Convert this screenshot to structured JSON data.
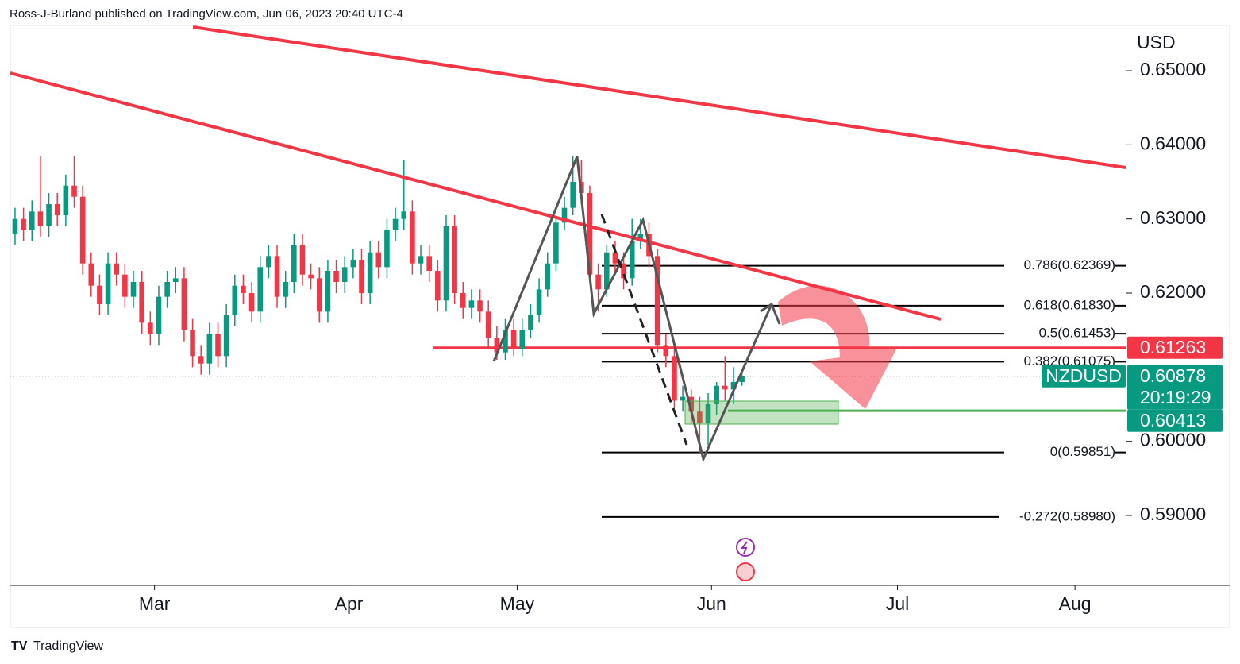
{
  "header": {
    "text": "Ross-J-Burland published on TradingView.com, Jun 06, 2023 20:40 UTC-4"
  },
  "footer": {
    "logo": "TradingView"
  },
  "chart_data": {
    "type": "candlestick",
    "y_axis_label": "USD",
    "up_color": "#089981",
    "down_color": "#f23645",
    "open": [
      0.628,
      0.63,
      0.6285,
      0.631,
      0.629,
      0.632,
      0.6305,
      0.6345,
      0.633,
      0.624,
      0.621,
      0.6185,
      0.624,
      0.6225,
      0.6195,
      0.6215,
      0.616,
      0.6145,
      0.6195,
      0.6215,
      0.622,
      0.615,
      0.6115,
      0.6105,
      0.6145,
      0.6115,
      0.617,
      0.621,
      0.62,
      0.6175,
      0.6235,
      0.625,
      0.6195,
      0.6215,
      0.6265,
      0.6225,
      0.622,
      0.6175,
      0.623,
      0.6215,
      0.6235,
      0.6245,
      0.62,
      0.6255,
      0.6235,
      0.6285,
      0.63,
      0.631,
      0.624,
      0.625,
      0.623,
      0.619,
      0.629,
      0.62,
      0.618,
      0.619,
      0.6175,
      0.614,
      0.612,
      0.615,
      0.6125,
      0.615,
      0.617,
      0.6205,
      0.624,
      0.6295,
      0.6315,
      0.635,
      0.6335,
      0.6225,
      0.6205,
      0.6255,
      0.624,
      0.622,
      0.627,
      0.628,
      0.625,
      0.613,
      0.6115,
      0.6055,
      0.606,
      0.604,
      0.6025,
      0.605,
      0.6075,
      0.607,
      0.608
    ],
    "high": [
      0.6315,
      0.6315,
      0.6325,
      0.6385,
      0.6335,
      0.6335,
      0.636,
      0.6385,
      0.6345,
      0.6255,
      0.6225,
      0.6255,
      0.6255,
      0.624,
      0.623,
      0.623,
      0.6175,
      0.621,
      0.623,
      0.6235,
      0.6235,
      0.6165,
      0.613,
      0.616,
      0.616,
      0.6185,
      0.6225,
      0.6225,
      0.6215,
      0.625,
      0.6265,
      0.6265,
      0.623,
      0.628,
      0.628,
      0.624,
      0.6235,
      0.6245,
      0.6245,
      0.625,
      0.626,
      0.626,
      0.627,
      0.627,
      0.63,
      0.6315,
      0.638,
      0.6325,
      0.6265,
      0.6265,
      0.6245,
      0.6305,
      0.6305,
      0.6215,
      0.6205,
      0.6205,
      0.619,
      0.6155,
      0.6165,
      0.6165,
      0.6165,
      0.6185,
      0.622,
      0.6255,
      0.6305,
      0.633,
      0.6385,
      0.638,
      0.6345,
      0.624,
      0.6265,
      0.627,
      0.6255,
      0.63,
      0.63,
      0.6295,
      0.626,
      0.6145,
      0.6125,
      0.6075,
      0.607,
      0.606,
      0.6065,
      0.608,
      0.6115,
      0.61,
      0.6095
    ],
    "low": [
      0.6265,
      0.627,
      0.627,
      0.6275,
      0.6275,
      0.629,
      0.629,
      0.6315,
      0.6225,
      0.6195,
      0.617,
      0.617,
      0.621,
      0.618,
      0.618,
      0.6145,
      0.613,
      0.613,
      0.618,
      0.62,
      0.6135,
      0.61,
      0.609,
      0.609,
      0.61,
      0.61,
      0.6155,
      0.6185,
      0.616,
      0.616,
      0.622,
      0.618,
      0.618,
      0.62,
      0.621,
      0.6205,
      0.616,
      0.616,
      0.62,
      0.62,
      0.622,
      0.6185,
      0.6185,
      0.622,
      0.622,
      0.627,
      0.6285,
      0.6225,
      0.6225,
      0.6215,
      0.6175,
      0.6175,
      0.6185,
      0.6165,
      0.6165,
      0.616,
      0.6125,
      0.611,
      0.611,
      0.6115,
      0.6115,
      0.614,
      0.616,
      0.6195,
      0.623,
      0.6285,
      0.6305,
      0.632,
      0.6215,
      0.6175,
      0.6195,
      0.6225,
      0.6205,
      0.621,
      0.626,
      0.6235,
      0.612,
      0.61,
      0.6045,
      0.604,
      0.6025,
      0.5985,
      0.5995,
      0.6035,
      0.6055,
      0.605,
      0.6075
    ],
    "close": [
      0.63,
      0.6285,
      0.631,
      0.629,
      0.632,
      0.6305,
      0.6345,
      0.633,
      0.624,
      0.621,
      0.6185,
      0.624,
      0.6225,
      0.6195,
      0.6215,
      0.616,
      0.6145,
      0.6195,
      0.6215,
      0.622,
      0.615,
      0.6115,
      0.6105,
      0.6145,
      0.6115,
      0.617,
      0.621,
      0.62,
      0.6175,
      0.6235,
      0.625,
      0.6195,
      0.6215,
      0.6265,
      0.6225,
      0.622,
      0.6175,
      0.623,
      0.6215,
      0.6235,
      0.6245,
      0.62,
      0.6255,
      0.6235,
      0.6285,
      0.63,
      0.631,
      0.624,
      0.625,
      0.623,
      0.619,
      0.629,
      0.62,
      0.618,
      0.619,
      0.6175,
      0.614,
      0.612,
      0.615,
      0.6125,
      0.615,
      0.617,
      0.6205,
      0.624,
      0.6295,
      0.6315,
      0.635,
      0.6335,
      0.6225,
      0.6205,
      0.6255,
      0.624,
      0.622,
      0.627,
      0.628,
      0.625,
      0.613,
      0.6115,
      0.6055,
      0.606,
      0.604,
      0.6025,
      0.605,
      0.6075,
      0.607,
      0.608,
      0.6088
    ],
    "xlim": [
      -0.56,
      131.4
    ],
    "xticks": [
      {
        "value": 16.5,
        "label": "Mar"
      },
      {
        "value": 39.5,
        "label": "Apr"
      },
      {
        "value": 59.4,
        "label": "May"
      },
      {
        "value": 82.4,
        "label": "Jun"
      },
      {
        "value": 104.4,
        "label": "Jul"
      },
      {
        "value": 125.4,
        "label": "Aug"
      }
    ],
    "ylim": [
      0.58057,
      0.65954
    ],
    "yticks": [
      {
        "value": 0.59,
        "label": "0.59000"
      },
      {
        "value": 0.6,
        "label": "0.60000"
      },
      {
        "value": 0.62,
        "label": "0.62000"
      },
      {
        "value": 0.63,
        "label": "0.63000"
      },
      {
        "value": 0.64,
        "label": "0.64000"
      },
      {
        "value": 0.65,
        "label": "0.65000"
      }
    ],
    "fib_levels": [
      {
        "value": 0.62369,
        "label": "0.786(0.62369)"
      },
      {
        "value": 0.6183,
        "label": "0.618(0.61830)"
      },
      {
        "value": 0.61453,
        "label": "0.5(0.61453)"
      },
      {
        "value": 0.61075,
        "label": "0.382(0.61075)"
      },
      {
        "value": 0.59851,
        "label": "0(0.59851)"
      },
      {
        "value": 0.5898,
        "label": "-0.272(0.58980)"
      }
    ],
    "resistance": {
      "value": 0.61263,
      "label": "0.61263",
      "color": "#f23645"
    },
    "support": {
      "value": 0.60413,
      "label": "0.60413",
      "color": "#089981"
    },
    "last_price": {
      "symbol": "NZDUSD",
      "value": 0.60878,
      "label": "0.60878",
      "countdown": "20:19:29",
      "color": "#089981"
    }
  }
}
